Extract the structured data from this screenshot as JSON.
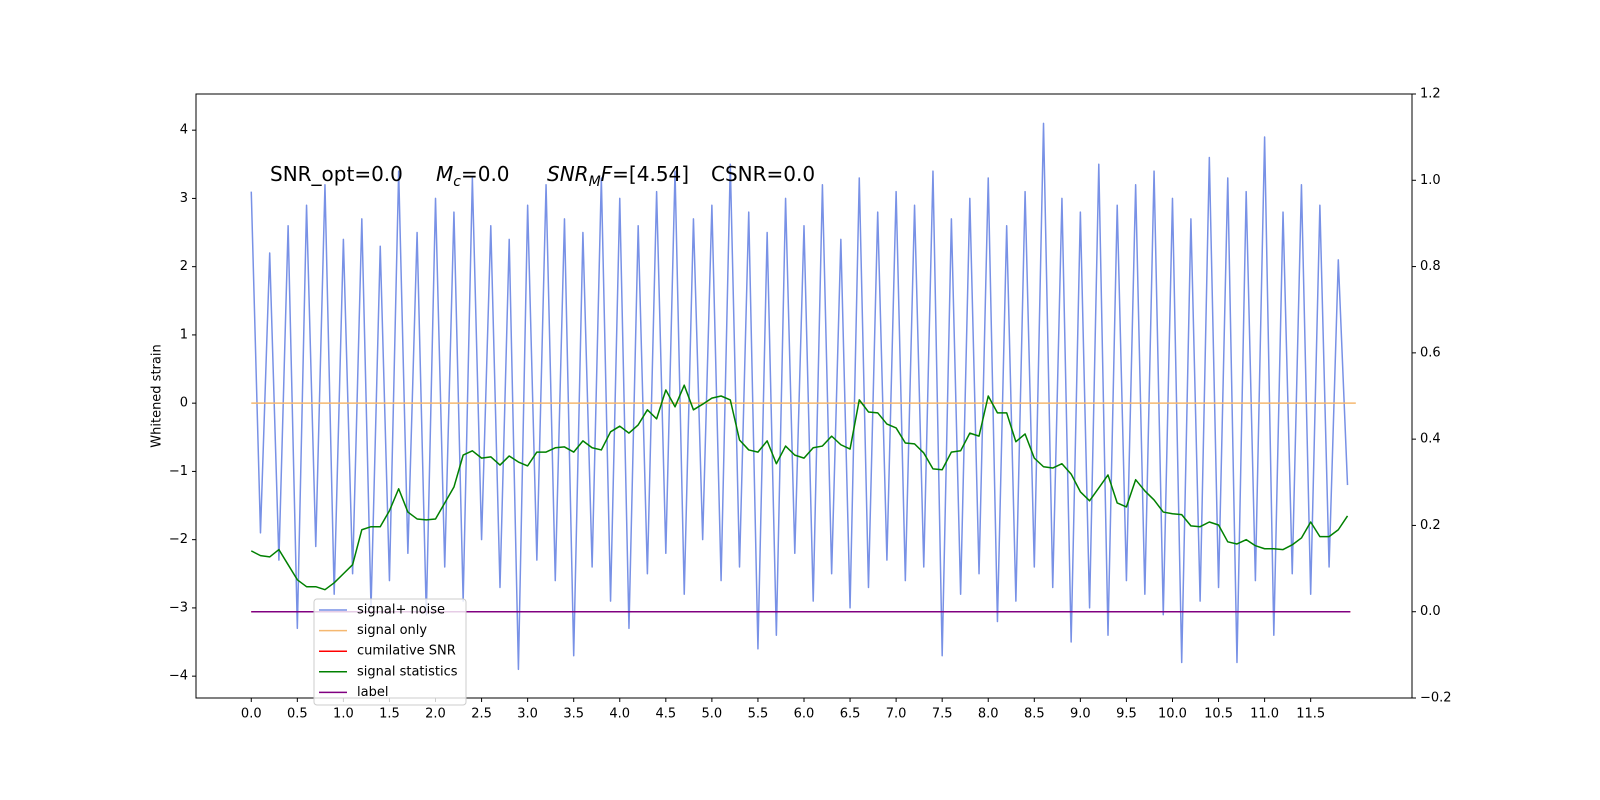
{
  "chart_data": {
    "type": "line",
    "ylabel": "Whitened strain",
    "annotation": [
      "SNR_opt=0.0",
      "M",
      "c",
      "=0.0",
      "SNR",
      "M",
      "F",
      "=[4.54]",
      "CSNR=0.0"
    ],
    "xlim": [
      -0.6,
      12.6
    ],
    "ylim": [
      -4.32,
      4.53
    ],
    "y2lim": [
      -0.2,
      1.2
    ],
    "xticks": [
      {
        "value": 0,
        "label": "0.0"
      },
      {
        "value": 0.5,
        "label": "0.5"
      },
      {
        "value": 1,
        "label": "1.0"
      },
      {
        "value": 1.5,
        "label": "1.5"
      },
      {
        "value": 2,
        "label": "2.0"
      },
      {
        "value": 2.5,
        "label": "2.5"
      },
      {
        "value": 3,
        "label": "3.0"
      },
      {
        "value": 3.5,
        "label": "3.5"
      },
      {
        "value": 4,
        "label": "4.0"
      },
      {
        "value": 4.5,
        "label": "4.5"
      },
      {
        "value": 5,
        "label": "5.0"
      },
      {
        "value": 5.5,
        "label": "5.5"
      },
      {
        "value": 6,
        "label": "6.0"
      },
      {
        "value": 6.5,
        "label": "6.5"
      },
      {
        "value": 7,
        "label": "7.0"
      },
      {
        "value": 7.5,
        "label": "7.5"
      },
      {
        "value": 8,
        "label": "8.0"
      },
      {
        "value": 8.5,
        "label": "8.5"
      },
      {
        "value": 9,
        "label": "9.0"
      },
      {
        "value": 9.5,
        "label": "9.5"
      },
      {
        "value": 10,
        "label": "10.0"
      },
      {
        "value": 10.5,
        "label": "10.5"
      },
      {
        "value": 11,
        "label": "11.0"
      },
      {
        "value": 11.5,
        "label": "11.5"
      }
    ],
    "yticks": [
      {
        "value": -4,
        "label": "−4"
      },
      {
        "value": -3,
        "label": "−3"
      },
      {
        "value": -2,
        "label": "−2"
      },
      {
        "value": -1,
        "label": "−1"
      },
      0,
      1,
      2,
      3,
      4
    ],
    "y2ticks": [
      {
        "value": -0.2,
        "label": "−0.2"
      },
      {
        "value": 0,
        "label": "0.0"
      },
      {
        "value": 0.2,
        "label": "0.2"
      },
      {
        "value": 0.4,
        "label": "0.4"
      },
      {
        "value": 0.6,
        "label": "0.6"
      },
      {
        "value": 0.8,
        "label": "0.8"
      },
      {
        "value": 1,
        "label": "1.0"
      },
      {
        "value": 1.2,
        "label": "1.2"
      }
    ],
    "x": [
      0,
      0.1,
      0.2,
      0.3,
      0.4,
      0.5,
      0.6,
      0.7,
      0.8,
      0.9,
      1,
      1.1,
      1.2,
      1.3,
      1.4,
      1.5,
      1.6,
      1.7,
      1.8,
      1.9,
      2,
      2.1,
      2.2,
      2.3,
      2.4,
      2.5,
      2.6,
      2.7,
      2.8,
      2.9,
      3,
      3.1,
      3.2,
      3.3,
      3.4,
      3.5,
      3.6,
      3.7,
      3.8,
      3.9,
      4,
      4.1,
      4.2,
      4.3,
      4.4,
      4.5,
      4.6,
      4.7,
      4.8,
      4.9,
      5,
      5.1,
      5.2,
      5.3,
      5.4,
      5.5,
      5.6,
      5.7,
      5.8,
      5.9,
      6,
      6.1,
      6.2,
      6.3,
      6.4,
      6.5,
      6.6,
      6.7,
      6.8,
      6.9,
      7,
      7.1,
      7.2,
      7.3,
      7.4,
      7.5,
      7.6,
      7.7,
      7.8,
      7.9,
      8,
      8.1,
      8.2,
      8.3,
      8.4,
      8.5,
      8.6,
      8.7,
      8.8,
      8.9,
      9,
      9.1,
      9.2,
      9.3,
      9.4,
      9.5,
      9.6,
      9.7,
      9.8,
      9.9,
      10,
      10.1,
      10.2,
      10.3,
      10.4,
      10.5,
      10.6,
      10.7,
      10.8,
      10.9,
      11,
      11.1,
      11.2,
      11.3,
      11.4,
      11.5,
      11.6,
      11.7,
      11.8,
      11.9
    ],
    "series": [
      {
        "name": "signal+ noise",
        "color": "#7891e6",
        "values": [
          3.1,
          -1.9,
          2.2,
          -2.3,
          2.6,
          -3.3,
          2.9,
          -2.1,
          3.2,
          -2.8,
          2.4,
          -2.5,
          2.7,
          -3.0,
          2.3,
          -2.6,
          3.4,
          -2.2,
          2.5,
          -3.1,
          3.0,
          -2.4,
          2.8,
          -2.9,
          3.3,
          -2.0,
          2.6,
          -2.7,
          2.4,
          -3.9,
          2.9,
          -2.3,
          3.2,
          -2.6,
          2.7,
          -3.7,
          2.5,
          -2.4,
          3.3,
          -2.9,
          3.0,
          -3.3,
          2.6,
          -2.5,
          3.1,
          -2.2,
          3.4,
          -2.8,
          2.7,
          -2.0,
          2.9,
          -2.6,
          3.5,
          -2.4,
          2.8,
          -3.6,
          2.5,
          -3.4,
          3.0,
          -2.2,
          2.6,
          -2.9,
          3.2,
          -2.5,
          2.4,
          -3.0,
          3.3,
          -2.7,
          2.8,
          -2.3,
          3.1,
          -2.6,
          2.9,
          -2.4,
          3.4,
          -3.7,
          2.7,
          -2.8,
          3.0,
          -2.5,
          3.3,
          -3.2,
          2.6,
          -2.9,
          3.1,
          -2.4,
          4.1,
          -2.7,
          3.0,
          -3.5,
          2.8,
          -3.0,
          3.5,
          -3.4,
          2.9,
          -2.6,
          3.2,
          -2.8,
          3.4,
          -3.1,
          3.0,
          -3.8,
          2.7,
          -2.9,
          3.6,
          -2.7,
          3.3,
          -3.8,
          3.1,
          -2.6,
          3.9,
          -3.4,
          2.8,
          -2.5,
          3.2,
          -2.8,
          2.9,
          -2.4,
          2.1,
          -1.2
        ]
      },
      {
        "name": "signal only",
        "color": "#f5b870",
        "x": [
          0,
          11.99
        ],
        "values": [
          0,
          0
        ]
      },
      {
        "name": "cumilative SNR",
        "color": "#ff0000",
        "axis": "y2",
        "x": [
          0,
          11.93
        ],
        "values": [
          0,
          0
        ]
      },
      {
        "name": "signal statistics",
        "color": "#008000",
        "axis": "y2",
        "values": [
          0.141,
          0.13,
          0.127,
          0.144,
          0.109,
          0.074,
          0.058,
          0.058,
          0.051,
          0.067,
          0.088,
          0.109,
          0.19,
          0.197,
          0.197,
          0.234,
          0.285,
          0.231,
          0.215,
          0.213,
          0.215,
          0.252,
          0.289,
          0.363,
          0.373,
          0.356,
          0.359,
          0.34,
          0.361,
          0.347,
          0.338,
          0.37,
          0.37,
          0.38,
          0.382,
          0.37,
          0.396,
          0.38,
          0.375,
          0.417,
          0.43,
          0.414,
          0.433,
          0.468,
          0.447,
          0.514,
          0.475,
          0.525,
          0.468,
          0.481,
          0.495,
          0.5,
          0.491,
          0.398,
          0.375,
          0.37,
          0.396,
          0.343,
          0.384,
          0.363,
          0.356,
          0.38,
          0.384,
          0.407,
          0.387,
          0.377,
          0.491,
          0.463,
          0.461,
          0.435,
          0.426,
          0.391,
          0.389,
          0.368,
          0.331,
          0.329,
          0.37,
          0.373,
          0.414,
          0.407,
          0.5,
          0.461,
          0.461,
          0.394,
          0.412,
          0.356,
          0.336,
          0.333,
          0.343,
          0.319,
          0.278,
          0.257,
          0.287,
          0.317,
          0.252,
          0.243,
          0.306,
          0.28,
          0.259,
          0.231,
          0.227,
          0.225,
          0.199,
          0.197,
          0.208,
          0.201,
          0.162,
          0.157,
          0.167,
          0.153,
          0.146,
          0.146,
          0.144,
          0.155,
          0.171,
          0.208,
          0.174,
          0.174,
          0.19,
          0.222
        ]
      },
      {
        "name": "label",
        "color": "#800080",
        "axis": "y2",
        "x": [
          0,
          11.93
        ],
        "values": [
          0,
          0
        ]
      }
    ]
  }
}
